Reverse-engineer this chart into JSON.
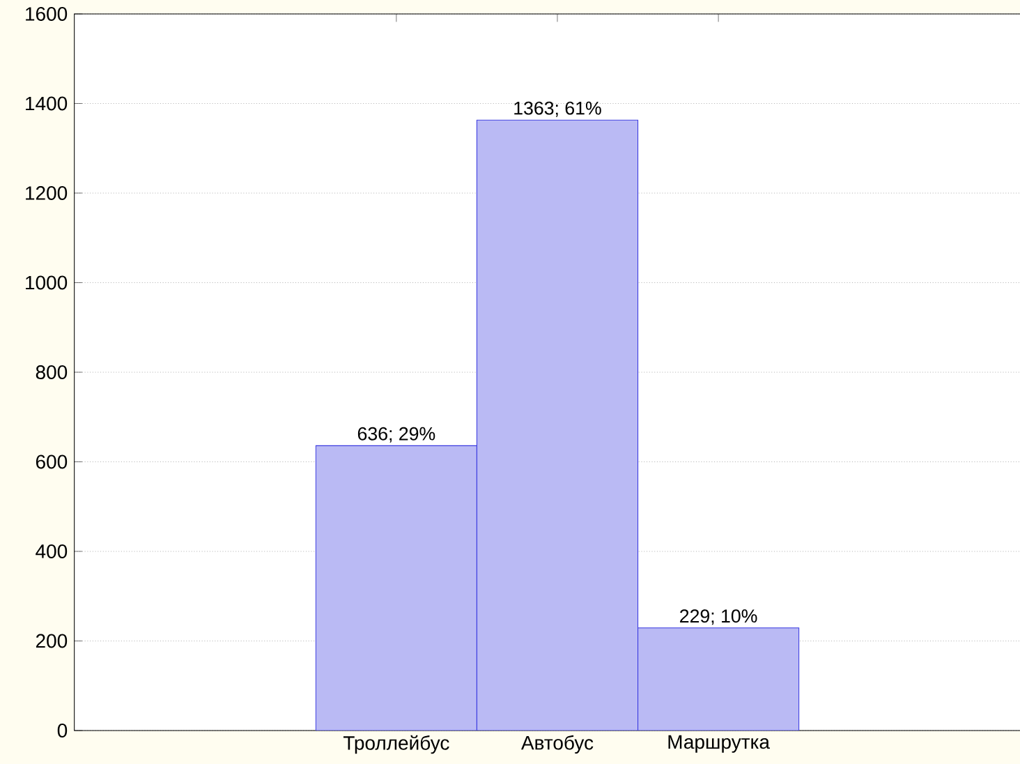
{
  "chart_data": {
    "type": "bar",
    "categories": [
      "Троллейбус",
      "Автобус",
      "Маршрутка"
    ],
    "values": [
      636,
      1363,
      229
    ],
    "value_labels": [
      "636; 29%",
      "1363; 61%",
      "229; 10%"
    ],
    "color": "#3a3ae0",
    "ylim": [
      0,
      1600
    ],
    "yticks": [
      0,
      200,
      400,
      600,
      800,
      1000,
      1200,
      1400,
      1600
    ],
    "grid": "y"
  }
}
